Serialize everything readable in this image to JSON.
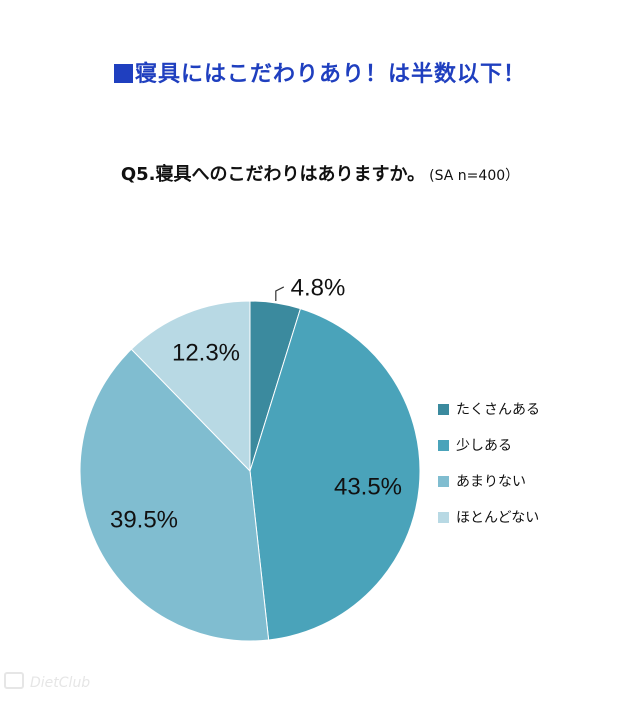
{
  "headline": {
    "marker": "■",
    "text": "寝具にはこだわりあり！は半数以下！"
  },
  "question": {
    "text": "Q5.寝具へのこだわりはありますか。",
    "meta": "(SA n=400）"
  },
  "watermark": "DietClub",
  "chart_data": {
    "type": "pie",
    "categories": [
      "たくさんある",
      "少しある",
      "あまりない",
      "ほとんどない"
    ],
    "values": [
      4.8,
      43.5,
      39.5,
      12.3
    ],
    "data_labels": [
      "4.8%",
      "43.5%",
      "39.5%",
      "12.3%"
    ],
    "colors": [
      "#3b8a9e",
      "#4aa3ba",
      "#80bdd0",
      "#b8d9e4"
    ],
    "legend_position": "right",
    "start_angle": "12 o'clock",
    "direction": "clockwise"
  }
}
